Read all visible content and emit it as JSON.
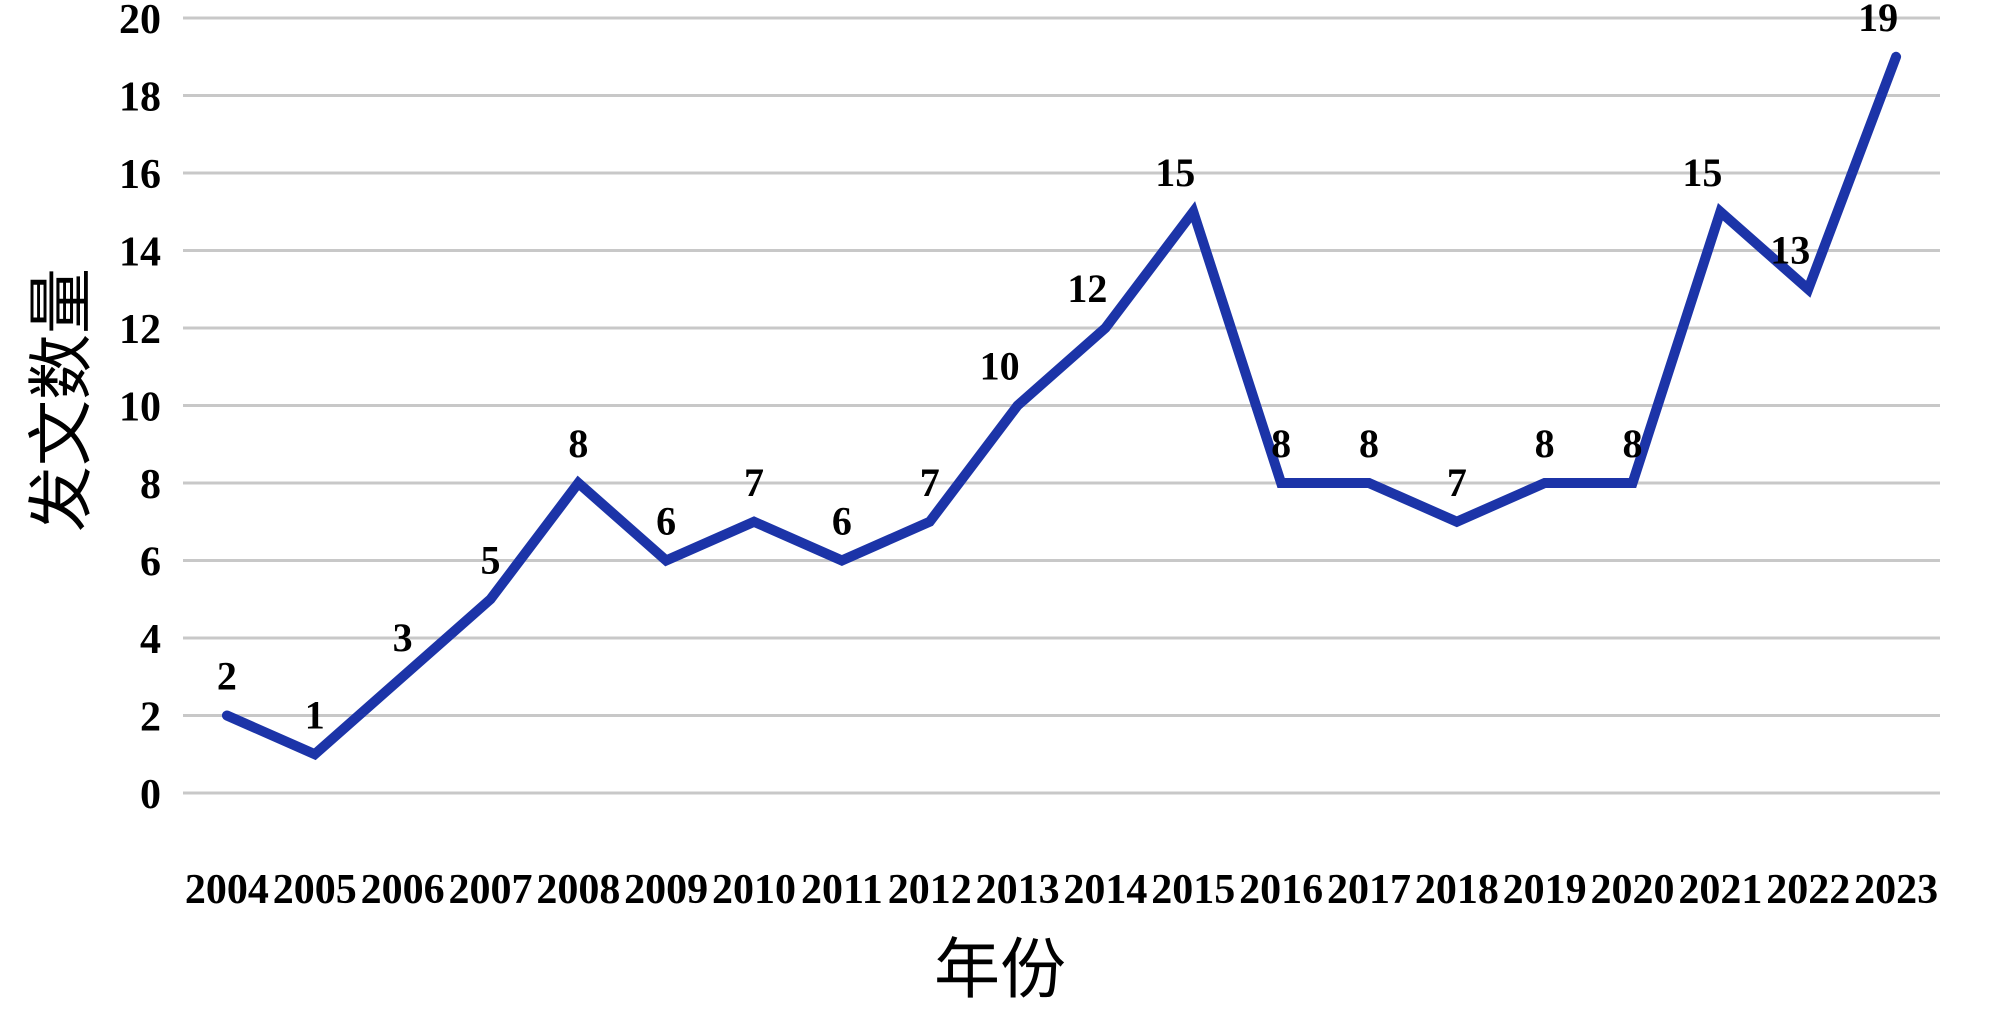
{
  "chart_data": {
    "type": "line",
    "title": "",
    "xlabel": "年份",
    "ylabel": "发文数量",
    "categories": [
      "2004",
      "2005",
      "2006",
      "2007",
      "2008",
      "2009",
      "2010",
      "2011",
      "2012",
      "2013",
      "2014",
      "2015",
      "2016",
      "2017",
      "2018",
      "2019",
      "2020",
      "2021",
      "2022",
      "2023"
    ],
    "values": [
      2,
      1,
      3,
      5,
      8,
      6,
      7,
      6,
      7,
      10,
      12,
      15,
      8,
      8,
      7,
      8,
      8,
      15,
      13,
      19
    ],
    "data_labels": [
      "2",
      "1",
      "3",
      "5",
      "8",
      "6",
      "7",
      "6",
      "7",
      "10",
      "12",
      "15",
      "8",
      "8",
      "7",
      "8",
      "8",
      "15",
      "13",
      "19"
    ],
    "ylim": [
      0,
      20
    ],
    "ytick_step": 2,
    "ytick_labels": [
      "0",
      "2",
      "4",
      "6",
      "8",
      "10",
      "12",
      "14",
      "16",
      "18",
      "20"
    ],
    "grid": "horizontal-on",
    "legend": "none",
    "colors": {
      "line": "#1c34a8",
      "gridline": "#c8c8c8",
      "text": "#000000",
      "background": "#ffffff"
    }
  }
}
